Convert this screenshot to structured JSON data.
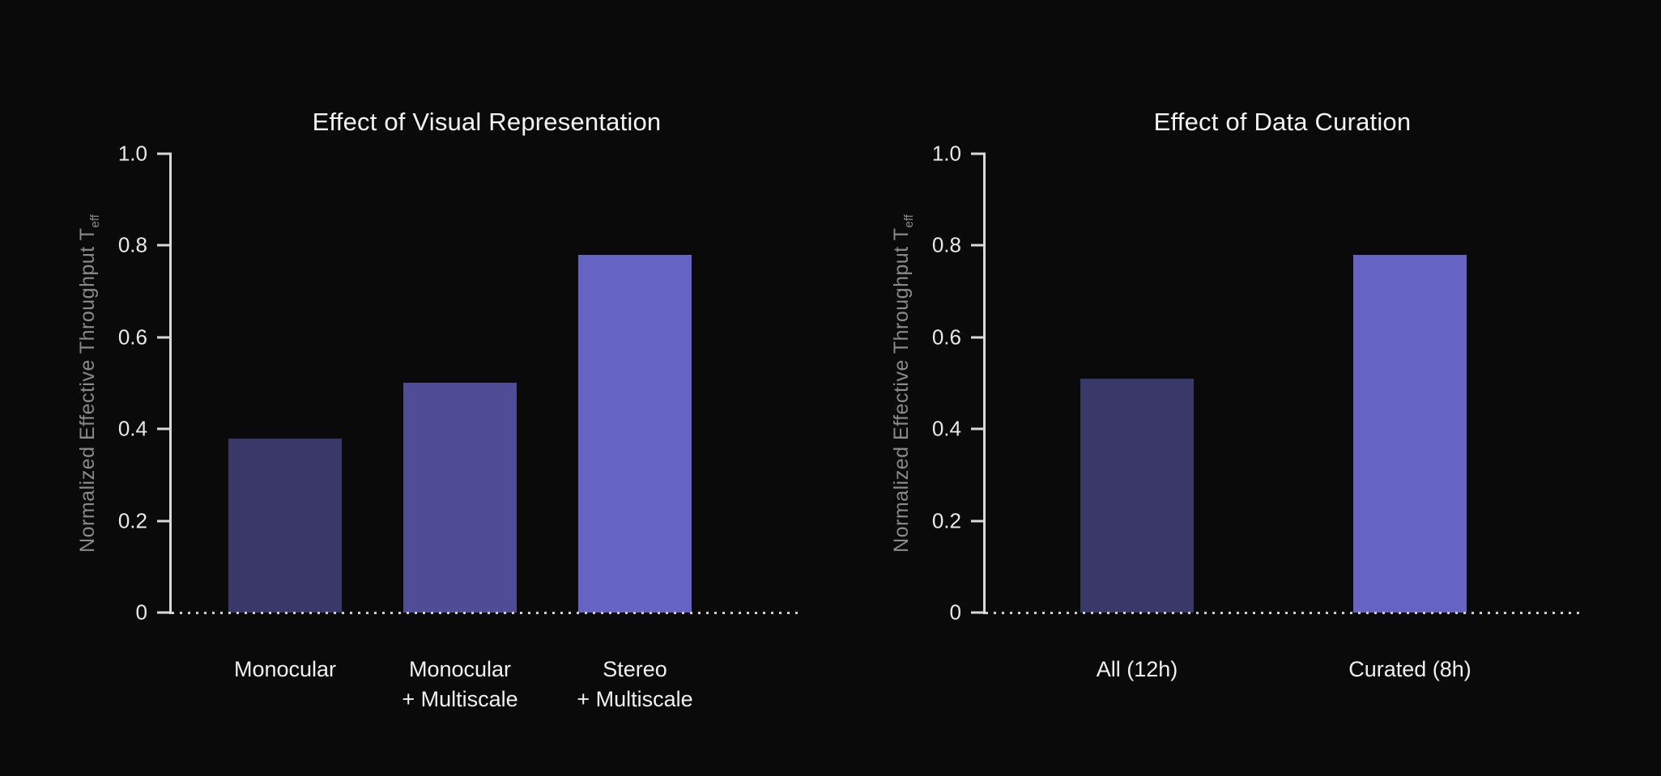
{
  "figure": {
    "background_color": "#0a0a0a",
    "title_color": "#f2f2f2",
    "axis_color": "#d9d9d9",
    "tick_label_color": "#e9e9e9",
    "y_axis_label_color": "#8a8a8a"
  },
  "y_axis": {
    "label_main": "Normalized Effective Throughput T",
    "label_sub": "eff",
    "label_full": "Normalized Effective Throughput T_eff"
  },
  "chart_data": [
    {
      "type": "bar",
      "title": "Effect of Visual Representation",
      "categories": [
        "Monocular",
        "Monocular + Multiscale",
        "Stereo + Multiscale"
      ],
      "category_lines": [
        [
          "Monocular"
        ],
        [
          "Monocular",
          "+ Multiscale"
        ],
        [
          "Stereo",
          "+ Multiscale"
        ]
      ],
      "values": [
        0.38,
        0.5,
        0.78
      ],
      "bar_colors": [
        "#3a3868",
        "#4f4d96",
        "#6563c3"
      ],
      "xlabel": "",
      "ylabel": "Normalized Effective Throughput T_eff",
      "ylim": [
        0,
        1.0
      ],
      "ytick_labels": [
        "1.0",
        "0.8",
        "0.6",
        "0.4",
        "0.2",
        "0"
      ],
      "grid": false,
      "legend": null,
      "baseline_style": "dotted"
    },
    {
      "type": "bar",
      "title": "Effect of Data Curation",
      "categories": [
        "All (12h)",
        "Curated (8h)"
      ],
      "category_lines": [
        [
          "All (12h)"
        ],
        [
          "Curated (8h)"
        ]
      ],
      "values": [
        0.51,
        0.78
      ],
      "bar_colors": [
        "#3a3868",
        "#6563c3"
      ],
      "xlabel": "",
      "ylabel": "Normalized Effective Throughput T_eff",
      "ylim": [
        0,
        1.0
      ],
      "ytick_labels": [
        "1.0",
        "0.8",
        "0.6",
        "0.4",
        "0.2",
        "0"
      ],
      "grid": false,
      "legend": null,
      "baseline_style": "dotted"
    }
  ]
}
